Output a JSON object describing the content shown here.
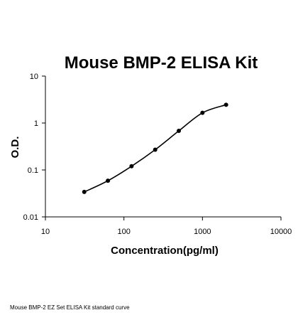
{
  "chart_data": {
    "type": "line",
    "title": "Mouse BMP-2 ELISA Kit",
    "xlabel": "Concentration(pg/ml)",
    "ylabel": "O.D.",
    "xscale": "log",
    "yscale": "log",
    "xlim": [
      10,
      10000
    ],
    "ylim": [
      0.01,
      10
    ],
    "x_ticks": [
      "10",
      "100",
      "1000",
      "10000"
    ],
    "y_ticks": [
      "0.01",
      "0.1",
      "1",
      "10"
    ],
    "grid": false,
    "legend": "none",
    "series": [
      {
        "x": [
          31.25,
          62.5,
          125,
          250,
          500,
          1000,
          2000
        ],
        "y": [
          0.034,
          0.059,
          0.12,
          0.27,
          0.68,
          1.65,
          2.45
        ]
      }
    ],
    "line_color": "#000000",
    "marker_color": "#000000"
  },
  "caption": "Mouse BMP-2 EZ Set ELISA Kit standard curve"
}
